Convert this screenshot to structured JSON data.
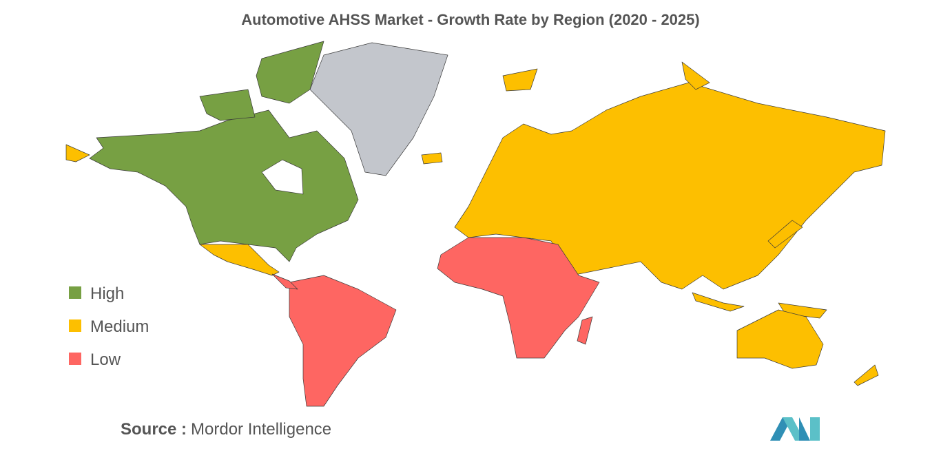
{
  "title": "Automotive AHSS Market - Growth Rate by Region (2020 - 2025)",
  "legend": [
    {
      "label": "High",
      "color": "#77a043"
    },
    {
      "label": "Medium",
      "color": "#fdbf00"
    },
    {
      "label": "Low",
      "color": "#fe6662"
    }
  ],
  "source": {
    "label": "Source :",
    "text": "Mordor Intelligence"
  }
}
